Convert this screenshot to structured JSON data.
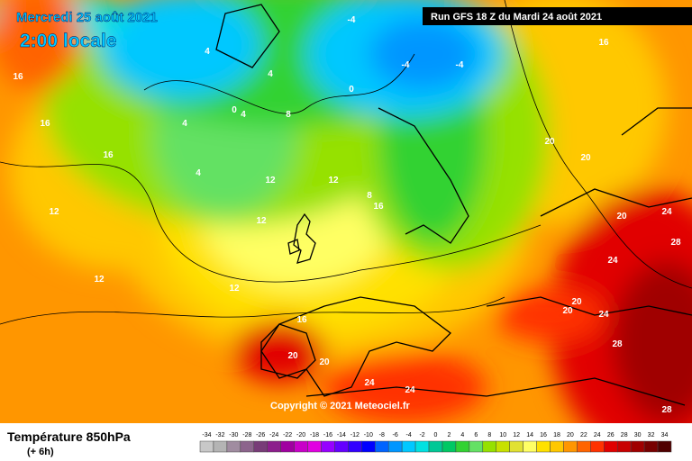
{
  "header": {
    "date": "Mercredi 25 août 2021",
    "time": "2:00 locale",
    "run": "Run GFS 18 Z du Mardi 24 août 2021"
  },
  "copyright": "Copyright © 2021 Meteociel.fr",
  "footer": {
    "title": "Température 850hPa",
    "lead": "(+ 6h)"
  },
  "contour_labels": [
    4,
    4,
    0,
    -4,
    -4,
    -4,
    0,
    4,
    4,
    4,
    8,
    16,
    16,
    16,
    12,
    12,
    12,
    8,
    12,
    12,
    12,
    16,
    20,
    20,
    20,
    24,
    28,
    24,
    20,
    24,
    28,
    20,
    24,
    24,
    16,
    20,
    16,
    20,
    28
  ],
  "scale": {
    "values": [
      -34,
      -32,
      -30,
      -28,
      -26,
      -24,
      -22,
      -20,
      -18,
      -16,
      -14,
      -12,
      -10,
      -8,
      -6,
      -4,
      -2,
      0,
      2,
      4,
      6,
      8,
      10,
      12,
      14,
      16,
      18,
      20,
      22,
      24,
      26,
      28,
      30,
      32,
      34
    ],
    "colors": [
      "#c8c8c8",
      "#b4b4b4",
      "#a08ca0",
      "#8c648c",
      "#783c78",
      "#8c1e8c",
      "#a000a0",
      "#c800c8",
      "#e100e1",
      "#9600ff",
      "#6400ff",
      "#3200ff",
      "#0000ff",
      "#0064ff",
      "#0096ff",
      "#00c8ff",
      "#00e1e1",
      "#00c896",
      "#00c864",
      "#32d232",
      "#64e164",
      "#96e100",
      "#c8e100",
      "#e1e132",
      "#ffff64",
      "#ffe100",
      "#ffc800",
      "#ff9600",
      "#ff6400",
      "#ff3200",
      "#e10000",
      "#c80000",
      "#a00000",
      "#780000",
      "#500000"
    ]
  }
}
